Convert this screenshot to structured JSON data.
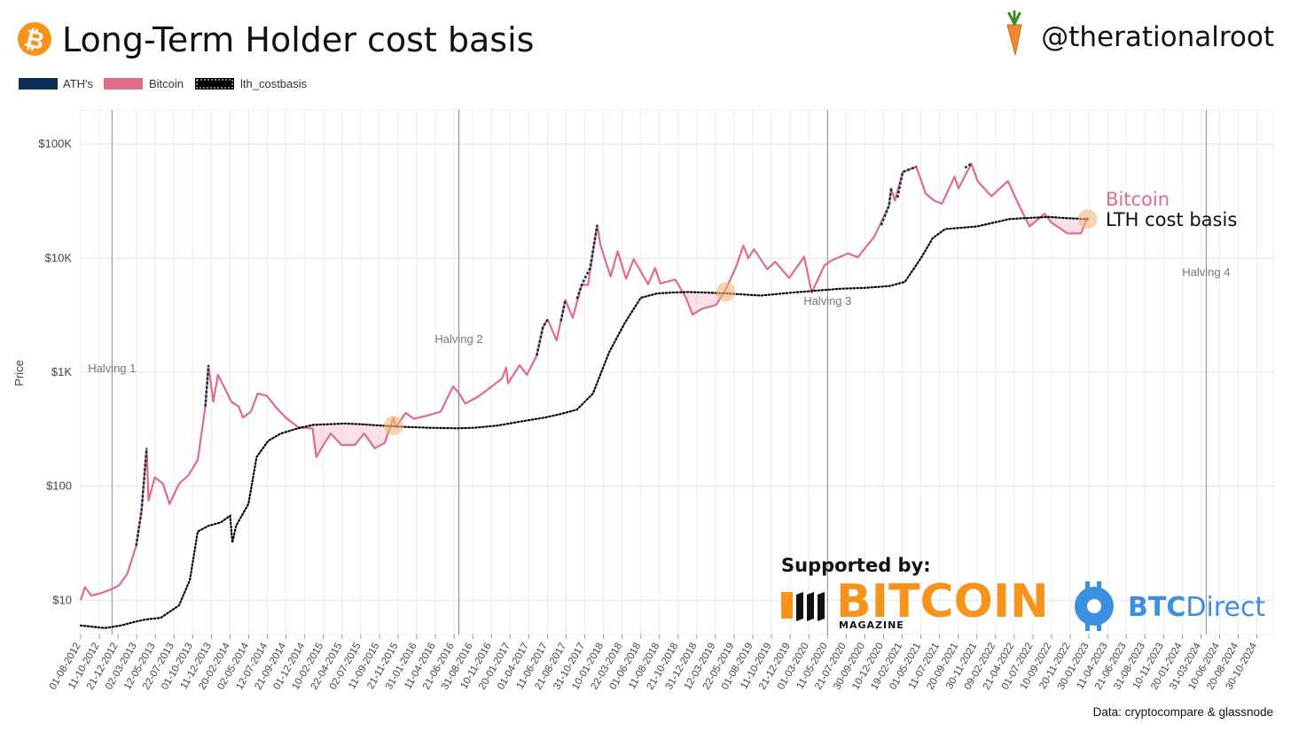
{
  "header": {
    "title": "Long-Term Holder cost basis",
    "handle": "@therationalroot",
    "logo_icon": "bitcoin-logo-icon",
    "handle_icon": "carrot-icon"
  },
  "colors": {
    "bitcoin": "#e06c85",
    "ath": "#0d2f57",
    "lth": "#000000",
    "orange": "#f7931a",
    "btcdirect": "#3a8fe0"
  },
  "legend": [
    {
      "label": "ATH's",
      "key": "ath"
    },
    {
      "label": "Bitcoin",
      "key": "bitcoin"
    },
    {
      "label": "lth_costbasis",
      "key": "lth"
    }
  ],
  "sponsors": {
    "heading": "Supported by:",
    "bitcoin_magazine": {
      "word": "BITCOIN",
      "sub": "MAGAZINE"
    },
    "btc_direct": {
      "bold": "BTC",
      "light": "Direct"
    }
  },
  "source": "Data: cryptocompare & glassnode",
  "chart_data": {
    "type": "line",
    "ylabel": "Price",
    "yscale": "log",
    "ylim": [
      5,
      200000
    ],
    "xlim": [
      "2012-08-01",
      "2024-12-31"
    ],
    "yticks": [
      {
        "value": 10,
        "label": "$10"
      },
      {
        "value": 100,
        "label": "$100"
      },
      {
        "value": 1000,
        "label": "$1K"
      },
      {
        "value": 10000,
        "label": "$10K"
      },
      {
        "value": 100000,
        "label": "$100K"
      }
    ],
    "xticks": [
      "01-08-2012",
      "11-10-2012",
      "21-12-2012",
      "02-03-2013",
      "12-05-2013",
      "22-07-2013",
      "01-10-2013",
      "11-12-2013",
      "20-02-2014",
      "02-05-2014",
      "12-07-2014",
      "21-09-2014",
      "01-12-2014",
      "10-02-2015",
      "22-04-2015",
      "02-07-2015",
      "11-09-2015",
      "21-11-2015",
      "31-01-2016",
      "11-04-2016",
      "21-06-2016",
      "31-08-2016",
      "10-11-2016",
      "20-01-2017",
      "01-04-2017",
      "11-06-2017",
      "21-08-2017",
      "31-10-2017",
      "10-01-2018",
      "22-03-2018",
      "01-06-2018",
      "11-08-2018",
      "21-10-2018",
      "31-12-2018",
      "12-03-2019",
      "22-05-2019",
      "01-08-2019",
      "11-10-2019",
      "21-12-2019",
      "01-03-2020",
      "11-05-2020",
      "21-07-2020",
      "30-09-2020",
      "10-12-2020",
      "19-02-2021",
      "01-05-2021",
      "11-07-2021",
      "20-09-2021",
      "30-11-2021",
      "09-02-2022",
      "21-04-2022",
      "01-07-2022",
      "10-09-2022",
      "20-11-2022",
      "30-01-2023",
      "11-04-2023",
      "21-06-2023",
      "31-08-2023",
      "10-11-2023",
      "20-01-2024",
      "31-03-2024",
      "10-06-2024",
      "20-08-2024",
      "30-10-2024"
    ],
    "halvings": [
      {
        "label": "Halving 1",
        "date": "2012-11-28",
        "label_price": 1000
      },
      {
        "label": "Halving 2",
        "date": "2016-07-09",
        "label_price": 1800
      },
      {
        "label": "Halving 3",
        "date": "2020-05-11",
        "label_price": 3900
      },
      {
        "label": "Halving 4",
        "date": "2024-04-20",
        "label_price": 7000
      }
    ],
    "series": [
      {
        "name": "Bitcoin",
        "color": "#e06c85",
        "points": [
          [
            "2012-08-01",
            10
          ],
          [
            "2012-08-17",
            13
          ],
          [
            "2012-09-10",
            11
          ],
          [
            "2012-10-15",
            11.5
          ],
          [
            "2012-11-28",
            12.5
          ],
          [
            "2012-12-25",
            13.5
          ],
          [
            "2013-01-25",
            17
          ],
          [
            "2013-02-28",
            30
          ],
          [
            "2013-03-20",
            60
          ],
          [
            "2013-04-09",
            215
          ],
          [
            "2013-04-16",
            75
          ],
          [
            "2013-05-10",
            120
          ],
          [
            "2013-06-10",
            105
          ],
          [
            "2013-07-05",
            70
          ],
          [
            "2013-08-10",
            105
          ],
          [
            "2013-09-15",
            125
          ],
          [
            "2013-10-20",
            170
          ],
          [
            "2013-11-18",
            500
          ],
          [
            "2013-11-30",
            1150
          ],
          [
            "2013-12-18",
            550
          ],
          [
            "2014-01-05",
            950
          ],
          [
            "2014-02-10",
            650
          ],
          [
            "2014-02-25",
            550
          ],
          [
            "2014-03-25",
            500
          ],
          [
            "2014-04-10",
            400
          ],
          [
            "2014-05-10",
            450
          ],
          [
            "2014-06-05",
            650
          ],
          [
            "2014-07-10",
            620
          ],
          [
            "2014-08-18",
            480
          ],
          [
            "2014-09-20",
            400
          ],
          [
            "2014-11-05",
            330
          ],
          [
            "2014-12-31",
            320
          ],
          [
            "2015-01-14",
            180
          ],
          [
            "2015-02-15",
            240
          ],
          [
            "2015-03-10",
            290
          ],
          [
            "2015-04-20",
            230
          ],
          [
            "2015-06-10",
            230
          ],
          [
            "2015-07-15",
            290
          ],
          [
            "2015-08-24",
            215
          ],
          [
            "2015-10-01",
            240
          ],
          [
            "2015-11-04",
            400
          ],
          [
            "2015-11-12",
            330
          ],
          [
            "2015-12-20",
            440
          ],
          [
            "2016-01-20",
            390
          ],
          [
            "2016-03-10",
            415
          ],
          [
            "2016-05-01",
            450
          ],
          [
            "2016-06-17",
            750
          ],
          [
            "2016-07-09",
            660
          ],
          [
            "2016-08-02",
            530
          ],
          [
            "2016-09-20",
            610
          ],
          [
            "2016-11-01",
            720
          ],
          [
            "2016-12-20",
            880
          ],
          [
            "2017-01-05",
            1100
          ],
          [
            "2017-01-12",
            800
          ],
          [
            "2017-02-25",
            1150
          ],
          [
            "2017-03-25",
            950
          ],
          [
            "2017-05-01",
            1400
          ],
          [
            "2017-05-25",
            2500
          ],
          [
            "2017-06-12",
            2900
          ],
          [
            "2017-07-16",
            1900
          ],
          [
            "2017-08-18",
            4300
          ],
          [
            "2017-09-15",
            3000
          ],
          [
            "2017-10-20",
            5900
          ],
          [
            "2017-11-12",
            5800
          ],
          [
            "2017-12-17",
            19500
          ],
          [
            "2017-12-30",
            13000
          ],
          [
            "2018-02-06",
            6900
          ],
          [
            "2018-03-05",
            11500
          ],
          [
            "2018-04-06",
            6600
          ],
          [
            "2018-05-05",
            9800
          ],
          [
            "2018-06-29",
            5900
          ],
          [
            "2018-07-25",
            8200
          ],
          [
            "2018-08-14",
            6000
          ],
          [
            "2018-10-10",
            6500
          ],
          [
            "2018-11-20",
            4500
          ],
          [
            "2018-12-15",
            3200
          ],
          [
            "2019-01-20",
            3600
          ],
          [
            "2019-03-15",
            3900
          ],
          [
            "2019-04-20",
            5300
          ],
          [
            "2019-05-30",
            8500
          ],
          [
            "2019-06-26",
            12900
          ],
          [
            "2019-07-15",
            10000
          ],
          [
            "2019-08-05",
            12000
          ],
          [
            "2019-09-25",
            8000
          ],
          [
            "2019-10-25",
            9300
          ],
          [
            "2019-12-17",
            6700
          ],
          [
            "2020-02-12",
            10300
          ],
          [
            "2020-03-12",
            5000
          ],
          [
            "2020-04-30",
            8700
          ],
          [
            "2020-06-01",
            9700
          ],
          [
            "2020-07-28",
            11000
          ],
          [
            "2020-09-03",
            10200
          ],
          [
            "2020-11-05",
            15500
          ],
          [
            "2020-12-31",
            29000
          ],
          [
            "2021-01-08",
            41000
          ],
          [
            "2021-01-22",
            32000
          ],
          [
            "2021-02-21",
            57000
          ],
          [
            "2021-04-14",
            63500
          ],
          [
            "2021-05-19",
            37000
          ],
          [
            "2021-06-21",
            32000
          ],
          [
            "2021-07-20",
            30000
          ],
          [
            "2021-09-06",
            52000
          ],
          [
            "2021-09-21",
            41000
          ],
          [
            "2021-11-09",
            67500
          ],
          [
            "2021-12-04",
            47000
          ],
          [
            "2022-01-24",
            35000
          ],
          [
            "2022-03-28",
            47500
          ],
          [
            "2022-05-11",
            28500
          ],
          [
            "2022-06-18",
            19000
          ],
          [
            "2022-08-14",
            24500
          ],
          [
            "2022-09-10",
            20500
          ],
          [
            "2022-11-09",
            16500
          ],
          [
            "2022-12-31",
            16500
          ],
          [
            "2023-01-25",
            23000
          ]
        ]
      },
      {
        "name": "lth_costbasis",
        "color": "#000000",
        "points": [
          [
            "2012-08-01",
            6
          ],
          [
            "2012-11-01",
            5.7
          ],
          [
            "2013-01-01",
            6
          ],
          [
            "2013-02-28",
            6.5
          ],
          [
            "2013-04-10",
            6.8
          ],
          [
            "2013-06-01",
            7
          ],
          [
            "2013-08-10",
            9
          ],
          [
            "2013-09-20",
            15
          ],
          [
            "2013-10-20",
            40
          ],
          [
            "2013-12-01",
            45
          ],
          [
            "2014-01-15",
            48
          ],
          [
            "2014-02-20",
            55
          ],
          [
            "2014-03-01",
            32
          ],
          [
            "2014-03-15",
            45
          ],
          [
            "2014-05-01",
            70
          ],
          [
            "2014-06-01",
            180
          ],
          [
            "2014-07-15",
            250
          ],
          [
            "2014-09-01",
            290
          ],
          [
            "2014-11-01",
            320
          ],
          [
            "2015-01-01",
            345
          ],
          [
            "2015-03-01",
            350
          ],
          [
            "2015-05-01",
            355
          ],
          [
            "2015-07-01",
            350
          ],
          [
            "2015-09-01",
            342
          ],
          [
            "2015-11-04",
            335
          ],
          [
            "2016-01-01",
            330
          ],
          [
            "2016-04-01",
            325
          ],
          [
            "2016-07-01",
            322
          ],
          [
            "2016-09-01",
            325
          ],
          [
            "2016-12-01",
            340
          ],
          [
            "2017-02-01",
            360
          ],
          [
            "2017-04-01",
            380
          ],
          [
            "2017-06-01",
            400
          ],
          [
            "2017-08-01",
            430
          ],
          [
            "2017-10-01",
            470
          ],
          [
            "2017-12-01",
            650
          ],
          [
            "2018-02-01",
            1500
          ],
          [
            "2018-04-01",
            2700
          ],
          [
            "2018-06-01",
            4500
          ],
          [
            "2018-08-01",
            4900
          ],
          [
            "2018-10-01",
            5000
          ],
          [
            "2018-12-01",
            5050
          ],
          [
            "2019-02-01",
            5000
          ],
          [
            "2019-05-01",
            4900
          ],
          [
            "2019-07-01",
            4800
          ],
          [
            "2019-09-01",
            4700
          ],
          [
            "2019-11-01",
            4850
          ],
          [
            "2020-01-01",
            5000
          ],
          [
            "2020-04-01",
            5200
          ],
          [
            "2020-07-01",
            5400
          ],
          [
            "2020-10-01",
            5500
          ],
          [
            "2021-01-01",
            5700
          ],
          [
            "2021-03-01",
            6200
          ],
          [
            "2021-05-01",
            10000
          ],
          [
            "2021-06-15",
            15000
          ],
          [
            "2021-08-01",
            18000
          ],
          [
            "2021-10-01",
            18500
          ],
          [
            "2021-12-01",
            19000
          ],
          [
            "2022-02-01",
            20500
          ],
          [
            "2022-04-01",
            22000
          ],
          [
            "2022-06-01",
            22500
          ],
          [
            "2022-09-01",
            23000
          ],
          [
            "2022-11-01",
            22500
          ],
          [
            "2023-01-25",
            22000
          ]
        ]
      },
      {
        "name": "ATH's",
        "color": "#0d2f57",
        "segments": [
          [
            [
              "2013-02-28",
              30
            ],
            [
              "2013-03-20",
              60
            ],
            [
              "2013-04-09",
              215
            ]
          ],
          [
            [
              "2013-11-18",
              500
            ],
            [
              "2013-11-30",
              1150
            ]
          ],
          [
            [
              "2017-05-01",
              1400
            ],
            [
              "2017-05-25",
              2500
            ],
            [
              "2017-06-12",
              2900
            ]
          ],
          [
            [
              "2017-08-01",
              2800
            ],
            [
              "2017-08-18",
              4300
            ]
          ],
          [
            [
              "2017-10-01",
              4400
            ],
            [
              "2017-10-20",
              5900
            ],
            [
              "2017-11-20",
              8200
            ],
            [
              "2017-12-17",
              19500
            ]
          ],
          [
            [
              "2020-12-01",
              19500
            ],
            [
              "2020-12-31",
              29000
            ],
            [
              "2021-01-08",
              41000
            ]
          ],
          [
            [
              "2021-02-01",
              34000
            ],
            [
              "2021-02-21",
              57000
            ],
            [
              "2021-04-14",
              63500
            ]
          ],
          [
            [
              "2021-10-15",
              62000
            ],
            [
              "2021-11-09",
              67500
            ]
          ]
        ]
      }
    ],
    "crossovers": [
      {
        "date": "2015-11-04",
        "price": 340
      },
      {
        "date": "2019-04-20",
        "price": 5050
      },
      {
        "date": "2023-01-25",
        "price": 22000
      }
    ],
    "shaded_regions": [
      {
        "start": "2014-11-01",
        "end": "2015-11-04"
      },
      {
        "start": "2018-11-15",
        "end": "2019-04-20"
      },
      {
        "start": "2022-06-10",
        "end": "2023-01-25"
      }
    ],
    "end_labels": {
      "bitcoin": "Bitcoin",
      "lth": "LTH cost basis"
    }
  }
}
